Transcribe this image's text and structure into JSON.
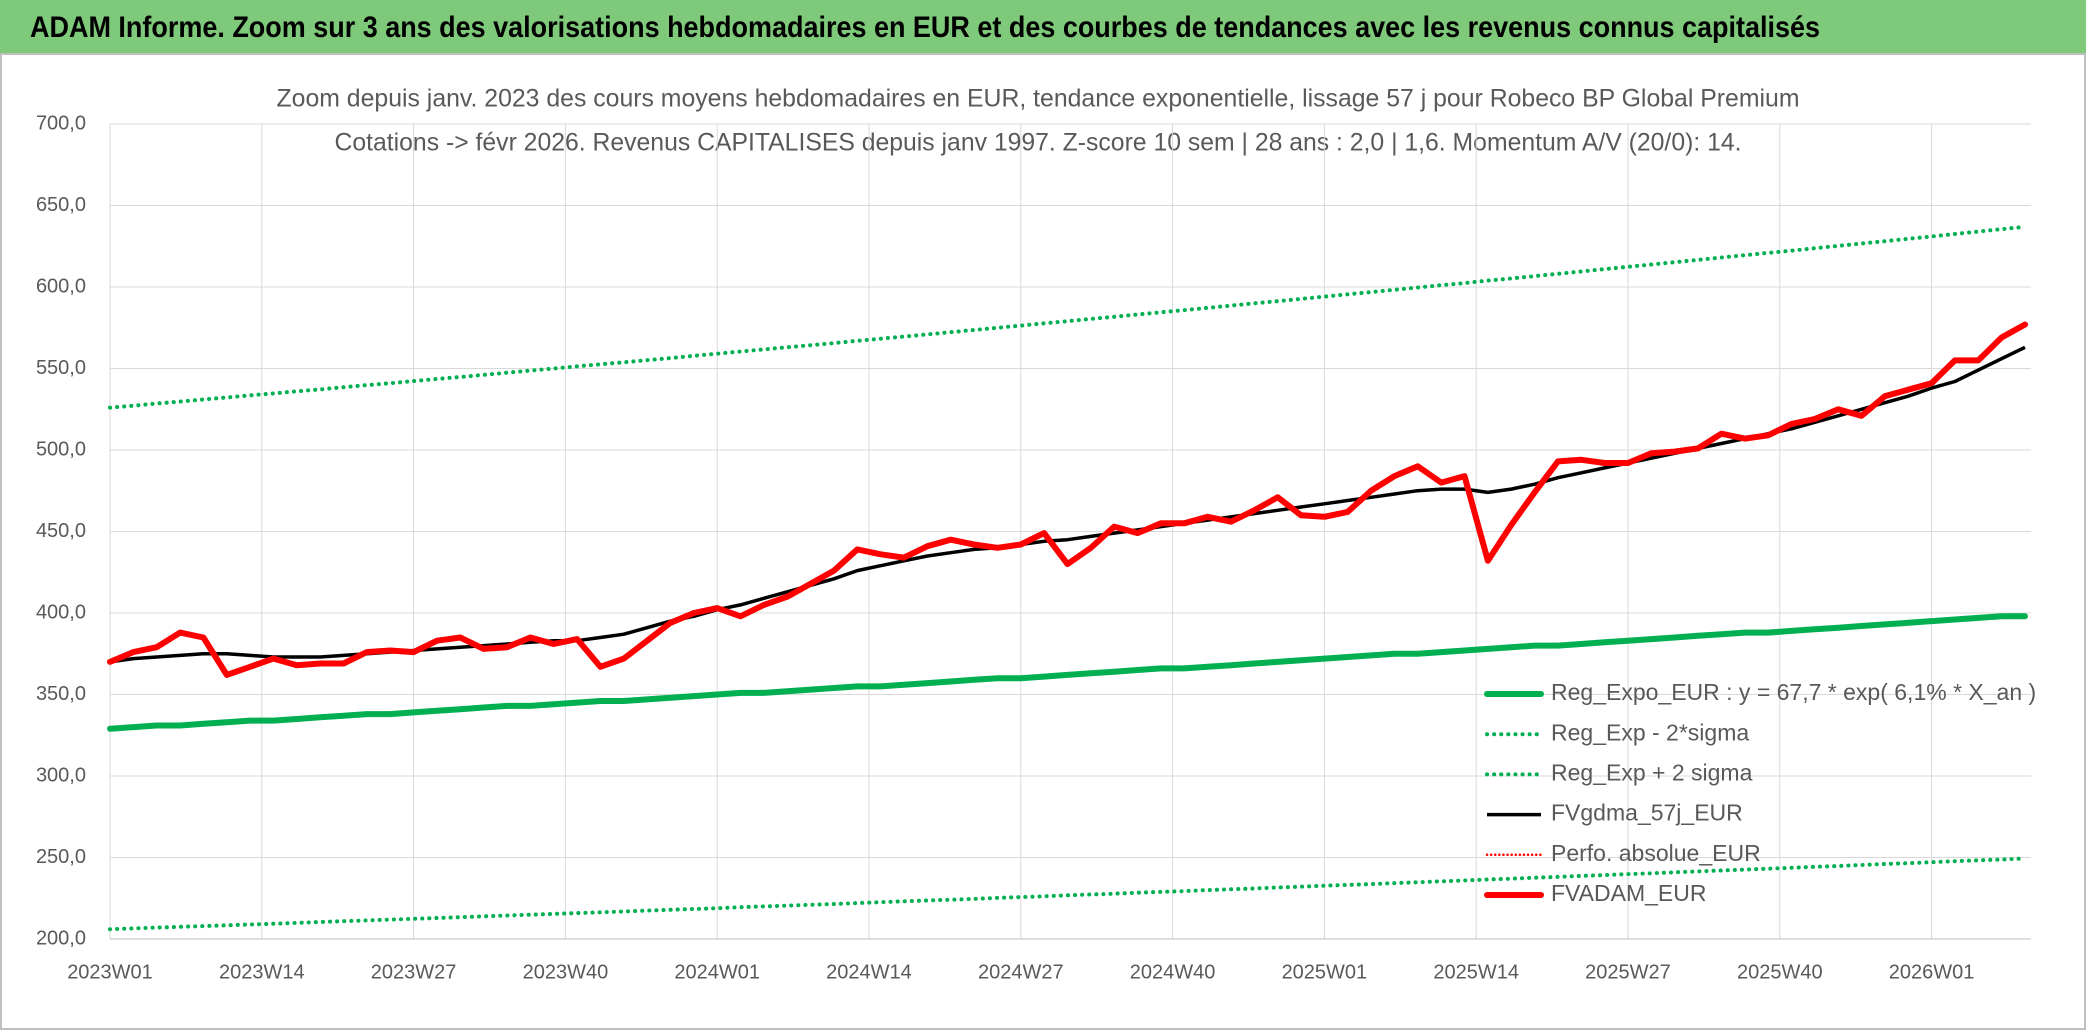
{
  "chart_data": {
    "type": "line",
    "title": "ADAM Informe. Zoom sur 3 ans des valorisations hebdomadaires en EUR et des courbes de tendances avec les revenus connus capitalisés",
    "subtitle": [
      "Zoom depuis janv. 2023 des cours moyens hebdomadaires en EUR, tendance exponentielle, lissage 57 j pour Robeco BP Global Premium",
      "Cotations -> févr 2026. Revenus CAPITALISES depuis janv 1997. Z-score 10 sem | 28 ans : 2,0 | 1,6. Momentum A/V (20/0): 14."
    ],
    "x": [
      "2023W01",
      "2023W03",
      "2023W05",
      "2023W07",
      "2023W09",
      "2023W11",
      "2023W13",
      "2023W15",
      "2023W17",
      "2023W19",
      "2023W21",
      "2023W23",
      "2023W25",
      "2023W27",
      "2023W29",
      "2023W31",
      "2023W33",
      "2023W35",
      "2023W37",
      "2023W39",
      "2023W41",
      "2023W43",
      "2023W45",
      "2023W47",
      "2023W49",
      "2023W51",
      "2024W01",
      "2024W03",
      "2024W05",
      "2024W07",
      "2024W09",
      "2024W11",
      "2024W13",
      "2024W15",
      "2024W17",
      "2024W19",
      "2024W21",
      "2024W23",
      "2024W25",
      "2024W27",
      "2024W29",
      "2024W31",
      "2024W33",
      "2024W35",
      "2024W37",
      "2024W39",
      "2024W41",
      "2024W43",
      "2024W45",
      "2024W47",
      "2024W49",
      "2024W51",
      "2025W01",
      "2025W03",
      "2025W05",
      "2025W07",
      "2025W09",
      "2025W11",
      "2025W13",
      "2025W15",
      "2025W17",
      "2025W19",
      "2025W21",
      "2025W23",
      "2025W25",
      "2025W27",
      "2025W29",
      "2025W31",
      "2025W33",
      "2025W35",
      "2025W37",
      "2025W39",
      "2025W41",
      "2025W43",
      "2025W45",
      "2025W47",
      "2025W49",
      "2025W51",
      "2026W01",
      "2026W03",
      "2026W05",
      "2026W07",
      "2026W09"
    ],
    "xlim": [
      "2023W01",
      "2026W09"
    ],
    "xticks": [
      "2023W01",
      "2023W14",
      "2023W27",
      "2023W40",
      "2024W01",
      "2024W14",
      "2024W27",
      "2024W40",
      "2025W01",
      "2025W14",
      "2025W27",
      "2025W40",
      "2026W01"
    ],
    "ylim": [
      200,
      700
    ],
    "yticks": [
      {
        "value": 200,
        "label": "200,0"
      },
      {
        "value": 250,
        "label": "250,0"
      },
      {
        "value": 300,
        "label": "300,0"
      },
      {
        "value": 350,
        "label": "350,0"
      },
      {
        "value": 400,
        "label": "400,0"
      },
      {
        "value": 450,
        "label": "450,0"
      },
      {
        "value": 500,
        "label": "500,0"
      },
      {
        "value": 550,
        "label": "550,0"
      },
      {
        "value": 600,
        "label": "600,0"
      },
      {
        "value": 650,
        "label": "650,0"
      },
      {
        "value": 700,
        "label": "700,0"
      }
    ],
    "grid": true,
    "legend": "lower right",
    "series": [
      {
        "name": "Reg_Expo_EUR : y = 67,7 * exp( 6,1% *  X_an )",
        "color": "#00b050",
        "style": "thick",
        "values": [
          329,
          330,
          331,
          331,
          332,
          333,
          334,
          334,
          335,
          336,
          337,
          338,
          338,
          339,
          340,
          341,
          342,
          343,
          343,
          344,
          345,
          346,
          346,
          347,
          348,
          349,
          350,
          351,
          351,
          352,
          353,
          354,
          355,
          355,
          356,
          357,
          358,
          359,
          360,
          360,
          361,
          362,
          363,
          364,
          365,
          366,
          366,
          367,
          368,
          369,
          370,
          371,
          372,
          373,
          374,
          375,
          375,
          376,
          377,
          378,
          379,
          380,
          380,
          381,
          382,
          383,
          384,
          385,
          386,
          387,
          388,
          388,
          389,
          390,
          391,
          392,
          393,
          394,
          395,
          396,
          397,
          398,
          398
        ]
      },
      {
        "name": "Reg_Exp - 2*sigma",
        "color": "#00b050",
        "style": "dotted",
        "values": [
          206.0,
          206.5,
          207.0,
          207.5,
          207.9,
          208.4,
          208.9,
          209.4,
          209.9,
          210.4,
          210.9,
          211.4,
          211.9,
          212.4,
          212.9,
          213.4,
          213.9,
          214.4,
          214.9,
          215.4,
          215.9,
          216.4,
          216.9,
          217.4,
          217.9,
          218.4,
          218.9,
          219.5,
          220.0,
          220.5,
          221.0,
          221.5,
          222.0,
          222.6,
          223.1,
          223.6,
          224.1,
          224.6,
          225.2,
          225.7,
          226.2,
          226.8,
          227.3,
          227.8,
          228.4,
          228.9,
          229.4,
          230.0,
          230.5,
          231.0,
          231.6,
          232.1,
          232.7,
          233.2,
          233.7,
          234.3,
          234.8,
          235.4,
          235.9,
          236.5,
          237.0,
          237.6,
          238.1,
          238.7,
          239.2,
          239.8,
          240.3,
          240.9,
          241.5,
          242.0,
          242.6,
          243.1,
          243.7,
          244.3,
          244.8,
          245.4,
          246.0,
          246.5,
          247.1,
          247.7,
          248.3,
          248.8,
          249.4
        ]
      },
      {
        "name": "Reg_Exp + 2 sigma",
        "color": "#00b050",
        "style": "dotted",
        "values": [
          526.0,
          527.2,
          528.5,
          529.7,
          531.0,
          532.2,
          533.5,
          534.7,
          536.0,
          537.2,
          538.5,
          539.8,
          541.0,
          542.3,
          543.6,
          544.8,
          546.1,
          547.4,
          548.7,
          550.0,
          551.3,
          552.6,
          553.8,
          555.1,
          556.4,
          557.8,
          559.1,
          560.4,
          561.7,
          563.0,
          564.3,
          565.6,
          567.0,
          568.3,
          569.6,
          570.9,
          572.3,
          573.6,
          575.0,
          576.3,
          577.7,
          579.0,
          580.4,
          581.7,
          583.1,
          584.5,
          585.8,
          587.2,
          588.6,
          590.0,
          591.3,
          592.7,
          594.1,
          595.5,
          596.9,
          598.3,
          599.7,
          601.1,
          602.4,
          603.9,
          605.2,
          606.7,
          608.1,
          609.5,
          611.0,
          612.4,
          613.8,
          615.2,
          616.6,
          618.1,
          619.5,
          620.9,
          622.3,
          623.8,
          625.2,
          626.7,
          628.1,
          629.6,
          631.0,
          632.5,
          634.0,
          635.5,
          636.9
        ]
      },
      {
        "name": "FVgdma_57j_EUR",
        "color": "#000000",
        "style": "thin",
        "values": [
          370,
          372,
          373,
          374,
          375,
          375,
          374,
          373,
          373,
          373,
          374,
          375,
          376,
          377,
          378,
          379,
          380,
          381,
          382,
          383,
          383,
          385,
          387,
          391,
          395,
          398,
          402,
          405,
          409,
          413,
          417,
          421,
          426,
          429,
          432,
          435,
          437,
          439,
          440,
          442,
          444,
          445,
          447,
          449,
          451,
          453,
          455,
          457,
          459,
          461,
          463,
          465,
          467,
          469,
          471,
          473,
          475,
          476,
          476,
          474,
          476,
          479,
          483,
          486,
          489,
          492,
          495,
          498,
          501,
          504,
          507,
          510,
          513,
          517,
          521,
          525,
          529,
          533,
          538,
          542,
          549,
          556,
          563
        ]
      },
      {
        "name": "Perfo. absolue_EUR",
        "color": "#ff0000",
        "style": "dotted-thin"
      },
      {
        "name": "FVADAM_EUR",
        "color": "#ff0000",
        "style": "thick",
        "values": [
          370,
          376,
          379,
          388,
          385,
          362,
          367,
          372,
          368,
          369,
          369,
          376,
          377,
          376,
          383,
          385,
          378,
          379,
          385,
          381,
          384,
          367,
          372,
          383,
          394,
          400,
          403,
          398,
          405,
          410,
          418,
          426,
          439,
          436,
          434,
          441,
          445,
          442,
          440,
          442,
          449,
          430,
          440,
          453,
          449,
          455,
          455,
          459,
          456,
          463,
          471,
          460,
          459,
          462,
          475,
          484,
          490,
          480,
          484,
          432,
          454,
          474,
          493,
          494,
          492,
          492,
          498,
          499,
          501,
          510,
          507,
          509,
          516,
          519,
          525,
          521,
          533,
          537,
          541,
          555,
          555,
          569,
          577
        ]
      }
    ]
  }
}
